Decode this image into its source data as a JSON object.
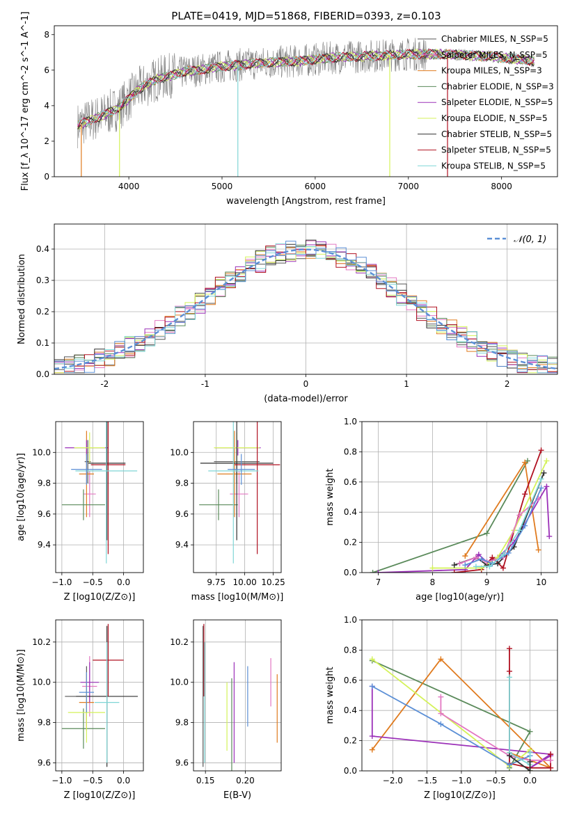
{
  "colors": {
    "Chabrier MILES": "#555555",
    "Salpeter MILES": "#e377c2",
    "Kroupa MILES": "#e07b1f",
    "Chabrier ELODIE": "#5a8a5a",
    "Salpeter ELODIE": "#9b30b8",
    "Kroupa ELODIE": "#d4f25a",
    "Chabrier STELIB": "#2f2f2f",
    "Salpeter STELIB": "#b01020",
    "Kroupa STELIB": "#7fd6d6",
    "gaussian": "#5b8fd6",
    "spectrum_data": "#808080"
  },
  "chart_data": [
    {
      "id": "spectrum",
      "type": "line",
      "title": "PLATE=0419, MJD=51868, FIBERID=0393, z=0.103",
      "xlabel": "wavelength [Angstrom, rest frame]",
      "ylabel": "Flux [f_λ 10^-17 erg cm^-2 s^-1 A^-1]",
      "xlim": [
        3200,
        8600
      ],
      "ylim": [
        0,
        8.5
      ],
      "xticks": [
        4000,
        5000,
        6000,
        7000,
        8000
      ],
      "yticks": [
        0,
        2,
        4,
        6,
        8
      ],
      "legend": {
        "placement": "top-right",
        "entries": [
          {
            "key": "Chabrier MILES",
            "label": "Chabrier MILES, N_SSP=5"
          },
          {
            "key": "Salpeter MILES",
            "label": "Salpeter MILES, N_SSP=5"
          },
          {
            "key": "Kroupa MILES",
            "label": "Kroupa MILES, N_SSP=3"
          },
          {
            "key": "Chabrier ELODIE",
            "label": "Chabrier ELODIE, N_SSP=3"
          },
          {
            "key": "Salpeter ELODIE",
            "label": "Salpeter ELODIE, N_SSP=5"
          },
          {
            "key": "Kroupa ELODIE",
            "label": "Kroupa ELODIE, N_SSP=5"
          },
          {
            "key": "Chabrier STELIB",
            "label": "Chabrier STELIB, N_SSP=5"
          },
          {
            "key": "Salpeter STELIB",
            "label": "Salpeter STELIB, N_SSP=5"
          },
          {
            "key": "Kroupa STELIB",
            "label": "Kroupa STELIB, N_SSP=5"
          }
        ]
      },
      "continuum": [
        [
          3450,
          2.9
        ],
        [
          3700,
          3.4
        ],
        [
          3900,
          3.9
        ],
        [
          4100,
          4.9
        ],
        [
          4300,
          5.5
        ],
        [
          4600,
          5.9
        ],
        [
          5000,
          6.2
        ],
        [
          5400,
          6.4
        ],
        [
          5800,
          6.5
        ],
        [
          6200,
          6.7
        ],
        [
          6600,
          6.8
        ],
        [
          7000,
          6.9
        ],
        [
          7400,
          6.9
        ],
        [
          7800,
          6.8
        ],
        [
          8200,
          6.6
        ],
        [
          8350,
          6.5
        ]
      ],
      "data_range": [
        3450,
        8350
      ],
      "model_dips": [
        {
          "key": "Kroupa MILES",
          "x": 3490,
          "to": 0
        },
        {
          "key": "Kroupa ELODIE",
          "x": 3900,
          "to": 0
        },
        {
          "key": "Kroupa STELIB",
          "x": 5170,
          "to": 0
        },
        {
          "key": "Kroupa ELODIE",
          "x": 6800,
          "to": 0
        },
        {
          "key": "Salpeter STELIB",
          "x": 7420,
          "to": 0
        }
      ]
    },
    {
      "id": "residuals",
      "type": "line",
      "xlabel": "(data-model)/error",
      "ylabel": "Normed distribution",
      "xlim": [
        -2.5,
        2.5
      ],
      "ylim": [
        0,
        0.48
      ],
      "xticks": [
        -2,
        -1,
        0,
        1,
        2
      ],
      "yticks": [
        0.0,
        0.1,
        0.2,
        0.3,
        0.4
      ],
      "grid": true,
      "legend": {
        "placement": "top-right",
        "entries": [
          {
            "key": "gaussian",
            "label": "𝒩(0, 1)"
          }
        ]
      },
      "gaussian": {
        "mean": 0,
        "sigma": 1
      }
    },
    {
      "id": "age_vs_Z",
      "type": "scatter",
      "xlabel": "Z [log10(Z/Z⊙)]",
      "ylabel": "age  [log10(age/yr)]",
      "xlim": [
        -1.1,
        0.32
      ],
      "ylim": [
        9.22,
        10.2
      ],
      "xticks": [
        -1.0,
        -0.5,
        0.0
      ],
      "xticklabels": [
        "−1.0",
        "−0.5",
        "0.0"
      ],
      "yticks": [
        9.4,
        9.6,
        9.8,
        10.0
      ],
      "yticklabels": [
        "9.4",
        "9.6",
        "9.8",
        "10.0"
      ],
      "grid": true,
      "points": [
        {
          "key": "Chabrier MILES",
          "x": -0.58,
          "xerr": 0.05,
          "y": 9.94,
          "yerr": 0.14
        },
        {
          "key": "Salpeter MILES",
          "x": -0.55,
          "xerr": 0.1,
          "y": 9.73,
          "yerr": 0.15
        },
        {
          "key": "Kroupa MILES",
          "x": -0.6,
          "xerr": 0.12,
          "y": 9.86,
          "yerr": 0.28
        },
        {
          "key": "Chabrier ELODIE",
          "x": -0.65,
          "xerr": 0.35,
          "y": 9.66,
          "yerr": 0.1
        },
        {
          "key": "Salpeter ELODIE",
          "x": -0.6,
          "xerr": 0.35,
          "y": 10.03,
          "yerr": 0.05
        },
        {
          "key": "Kroupa ELODIE",
          "x": -0.55,
          "xerr": 0.25,
          "y": 10.03,
          "yerr": 0.1
        },
        {
          "key": "Chabrier STELIB",
          "x": -0.27,
          "xerr": 0.3,
          "y": 9.93,
          "yerr": 0.5
        },
        {
          "key": "Salpeter STELIB",
          "x": -0.25,
          "xerr": 0.28,
          "y": 9.92,
          "yerr": 0.58
        },
        {
          "key": "Kroupa STELIB",
          "x": -0.28,
          "xerr": 0.5,
          "y": 9.88,
          "yerr": 0.6
        },
        {
          "key": "gaussian",
          "x": -0.6,
          "xerr": 0.25,
          "y": 9.89,
          "yerr": 0.1
        }
      ]
    },
    {
      "id": "age_vs_mass",
      "type": "scatter",
      "xlabel": "mass [log10(M/M⊙)]",
      "xlim": [
        9.55,
        10.32
      ],
      "ylim": [
        9.22,
        10.2
      ],
      "xticks": [
        9.75,
        10.0,
        10.25
      ],
      "xticklabels": [
        "9.75",
        "10.00",
        "10.25"
      ],
      "yticks": [
        9.4,
        9.6,
        9.8,
        10.0
      ],
      "yticklabels": [
        "9.4",
        "9.6",
        "9.8",
        "10.0"
      ],
      "grid": true,
      "points": [
        {
          "key": "Chabrier MILES",
          "x": 9.93,
          "xerr": 0.2,
          "y": 9.94,
          "yerr": 0.14
        },
        {
          "key": "Salpeter MILES",
          "x": 9.95,
          "xerr": 0.08,
          "y": 9.73,
          "yerr": 0.15
        },
        {
          "key": "Kroupa MILES",
          "x": 9.91,
          "xerr": 0.15,
          "y": 9.86,
          "yerr": 0.28
        },
        {
          "key": "Chabrier ELODIE",
          "x": 9.77,
          "xerr": 0.17,
          "y": 9.66,
          "yerr": 0.1
        },
        {
          "key": "Salpeter ELODIE",
          "x": 9.94,
          "xerr": 0.2,
          "y": 10.03,
          "yerr": 0.05
        },
        {
          "key": "Kroupa ELODIE",
          "x": 9.93,
          "xerr": 0.2,
          "y": 10.03,
          "yerr": 0.1
        },
        {
          "key": "Chabrier STELIB",
          "x": 9.93,
          "xerr": 0.32,
          "y": 9.93,
          "yerr": 0.5
        },
        {
          "key": "Salpeter STELIB",
          "x": 10.11,
          "xerr": 0.2,
          "y": 9.92,
          "yerr": 0.58
        },
        {
          "key": "Kroupa STELIB",
          "x": 9.9,
          "xerr": 0.22,
          "y": 9.88,
          "yerr": 0.6
        },
        {
          "key": "gaussian",
          "x": 9.97,
          "xerr": 0.12,
          "y": 9.89,
          "yerr": 0.1
        }
      ]
    },
    {
      "id": "weight_vs_age",
      "type": "line",
      "xlabel": "age  [log10(age/yr)]",
      "ylabel": "mass weight",
      "xlim": [
        6.7,
        10.3
      ],
      "ylim": [
        0.0,
        1.0
      ],
      "xticks": [
        7,
        8,
        9,
        10
      ],
      "yticks": [
        0.0,
        0.2,
        0.4,
        0.6,
        0.8,
        1.0
      ],
      "grid": true,
      "series": [
        {
          "key": "Chabrier ELODIE",
          "x": [
            6.9,
            9.0,
            9.75
          ],
          "y": [
            0.0,
            0.26,
            0.74
          ]
        },
        {
          "key": "Kroupa MILES",
          "x": [
            8.6,
            9.7,
            9.95
          ],
          "y": [
            0.11,
            0.73,
            0.15
          ]
        },
        {
          "key": "Salpeter ELODIE",
          "x": [
            7.0,
            8.6,
            8.85,
            9.0,
            9.2,
            9.5,
            10.1,
            10.15
          ],
          "y": [
            0.0,
            0.02,
            0.12,
            0.07,
            0.1,
            0.2,
            0.57,
            0.24
          ]
        },
        {
          "key": "Salpeter STELIB",
          "x": [
            8.4,
            8.9,
            9.1,
            9.3,
            9.7,
            10.0
          ],
          "y": [
            0.0,
            0.02,
            0.1,
            0.03,
            0.52,
            0.81
          ]
        },
        {
          "key": "Kroupa ELODIE",
          "x": [
            8.0,
            8.9,
            9.2,
            9.5,
            10.1
          ],
          "y": [
            0.03,
            0.03,
            0.1,
            0.28,
            0.74
          ]
        },
        {
          "key": "Chabrier STELIB",
          "x": [
            8.4,
            8.8,
            9.0,
            9.2,
            9.5,
            10.05
          ],
          "y": [
            0.05,
            0.1,
            0.05,
            0.06,
            0.17,
            0.66
          ]
        },
        {
          "key": "Salpeter MILES",
          "x": [
            8.5,
            8.8,
            9.0,
            9.3,
            9.6,
            9.95
          ],
          "y": [
            0.06,
            0.1,
            0.07,
            0.1,
            0.38,
            0.49
          ]
        },
        {
          "key": "gaussian",
          "x": [
            8.6,
            8.9,
            9.1,
            9.4,
            9.7,
            10.0
          ],
          "y": [
            0.05,
            0.09,
            0.06,
            0.13,
            0.31,
            0.56
          ]
        },
        {
          "key": "Kroupa STELIB",
          "x": [
            8.8,
            9.05,
            9.3,
            9.6,
            10.0
          ],
          "y": [
            0.04,
            0.04,
            0.12,
            0.28,
            0.62
          ]
        }
      ]
    },
    {
      "id": "mass_vs_Z",
      "type": "scatter",
      "xlabel": "Z [log10(Z/Z⊙)]",
      "ylabel": "mass [log10(M/M⊙)]",
      "xlim": [
        -1.1,
        0.32
      ],
      "ylim": [
        9.56,
        10.31
      ],
      "xticks": [
        -1.0,
        -0.5,
        0.0
      ],
      "xticklabels": [
        "−1.0",
        "−0.5",
        "0.0"
      ],
      "yticks": [
        9.6,
        9.8,
        10.0,
        10.2
      ],
      "yticklabels": [
        "9.6",
        "9.8",
        "10.0",
        "10.2"
      ],
      "grid": true,
      "points": [
        {
          "key": "Chabrier MILES",
          "x": -0.6,
          "xerr": 0.35,
          "y": 9.93,
          "yerr": 0.15
        },
        {
          "key": "Salpeter MILES",
          "x": -0.55,
          "xerr": 0.12,
          "y": 9.98,
          "yerr": 0.15
        },
        {
          "key": "Kroupa MILES",
          "x": -0.6,
          "xerr": 0.12,
          "y": 9.9,
          "yerr": 0.14
        },
        {
          "key": "Chabrier ELODIE",
          "x": -0.65,
          "xerr": 0.35,
          "y": 9.77,
          "yerr": 0.1
        },
        {
          "key": "Salpeter ELODIE",
          "x": -0.55,
          "xerr": 0.15,
          "y": 10.0,
          "yerr": 0.1
        },
        {
          "key": "Kroupa ELODIE",
          "x": -0.6,
          "xerr": 0.3,
          "y": 9.85,
          "yerr": 0.15
        },
        {
          "key": "Chabrier STELIB",
          "x": -0.27,
          "xerr": 0.5,
          "y": 9.93,
          "yerr": 0.35
        },
        {
          "key": "Salpeter STELIB",
          "x": -0.25,
          "xerr": 0.25,
          "y": 10.11,
          "yerr": 0.18
        },
        {
          "key": "Kroupa STELIB",
          "x": -0.27,
          "xerr": 0.2,
          "y": 9.9,
          "yerr": 0.3
        },
        {
          "key": "gaussian",
          "x": -0.6,
          "xerr": 0.12,
          "y": 9.95,
          "yerr": 0.1
        }
      ]
    },
    {
      "id": "mass_vs_ebv",
      "type": "scatter",
      "xlabel": "E(B-V)",
      "xlim": [
        0.135,
        0.245
      ],
      "ylim": [
        9.56,
        10.31
      ],
      "xticks": [
        0.15,
        0.2
      ],
      "xticklabels": [
        "0.15",
        "0.20"
      ],
      "yticks": [
        9.6,
        9.8,
        10.0,
        10.2
      ],
      "yticklabels": [
        "9.6",
        "9.8",
        "10.0",
        "10.2"
      ],
      "grid": true,
      "points": [
        {
          "key": "Chabrier MILES",
          "x": 0.147,
          "y": 9.93,
          "yerr": 0.35
        },
        {
          "key": "Salpeter STELIB",
          "x": 0.148,
          "y": 10.11,
          "yerr": 0.18
        },
        {
          "key": "Kroupa STELIB",
          "x": 0.149,
          "y": 9.9,
          "yerr": 0.3
        },
        {
          "key": "Kroupa ELODIE",
          "x": 0.177,
          "y": 9.83,
          "yerr": 0.17
        },
        {
          "key": "Chabrier ELODIE",
          "x": 0.183,
          "y": 9.77,
          "yerr": 0.25
        },
        {
          "key": "Salpeter ELODIE",
          "x": 0.186,
          "y": 9.85,
          "yerr": 0.25
        },
        {
          "key": "gaussian",
          "x": 0.203,
          "y": 9.93,
          "yerr": 0.15
        },
        {
          "key": "Salpeter MILES",
          "x": 0.232,
          "y": 10.0,
          "yerr": 0.12
        },
        {
          "key": "Kroupa MILES",
          "x": 0.24,
          "y": 9.87,
          "yerr": 0.17
        }
      ]
    },
    {
      "id": "weight_vs_Z",
      "type": "line",
      "xlabel": "Z [log10(Z/Z⊙)]",
      "ylabel": "mass weight",
      "xlim": [
        -2.45,
        0.4
      ],
      "ylim": [
        0.0,
        1.0
      ],
      "xticks": [
        -2.0,
        -1.5,
        -1.0,
        -0.5,
        0.0
      ],
      "xticklabels": [
        "−2.0",
        "−1.5",
        "−1.0",
        "−0.5",
        "0.0"
      ],
      "yticks": [
        0.0,
        0.2,
        0.4,
        0.6,
        0.8,
        1.0
      ],
      "grid": true,
      "series": [
        {
          "key": "Chabrier ELODIE",
          "x": [
            -2.3,
            0.0,
            -0.3
          ],
          "y": [
            0.73,
            0.26,
            0.02
          ]
        },
        {
          "key": "Kroupa MILES",
          "x": [
            -2.3,
            -1.3,
            0.3,
            -0.3
          ],
          "y": [
            0.14,
            0.74,
            0.02,
            0.12
          ]
        },
        {
          "key": "Salpeter ELODIE",
          "x": [
            -2.3,
            -2.3,
            0.3,
            0.0,
            0.3
          ],
          "y": [
            0.56,
            0.23,
            0.11,
            0.02,
            0.1
          ]
        },
        {
          "key": "Kroupa ELODIE",
          "x": [
            -2.3,
            -0.3,
            0.0,
            0.0
          ],
          "y": [
            0.74,
            0.03,
            0.14,
            0.0
          ]
        },
        {
          "key": "Salpeter STELIB",
          "x": [
            -0.3,
            -0.3,
            -0.3,
            0.0,
            0.3,
            0.3
          ],
          "y": [
            0.81,
            0.66,
            0.05,
            0.02,
            0.02,
            0.11
          ]
        },
        {
          "key": "Salpeter MILES",
          "x": [
            -1.3,
            -1.3,
            -0.3,
            0.0,
            0.3
          ],
          "y": [
            0.49,
            0.38,
            0.1,
            0.07,
            0.07
          ]
        },
        {
          "key": "gaussian",
          "x": [
            -2.3,
            -1.3,
            -0.3,
            0.0
          ],
          "y": [
            0.56,
            0.31,
            0.04,
            0.1
          ]
        },
        {
          "key": "Kroupa STELIB",
          "x": [
            -0.3,
            -0.3,
            0.0,
            0.0
          ],
          "y": [
            0.62,
            0.12,
            0.04,
            0.12
          ]
        },
        {
          "key": "Chabrier STELIB",
          "x": [
            -0.3,
            0.0,
            0.0
          ],
          "y": [
            0.1,
            0.0,
            0.06
          ]
        }
      ]
    }
  ]
}
